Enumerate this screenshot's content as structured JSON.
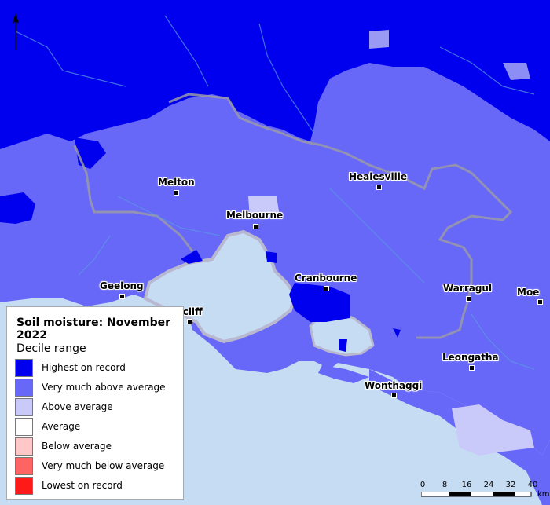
{
  "map": {
    "legend": {
      "title": "Soil moisture: November 2022",
      "subtitle": "Decile range",
      "items": [
        {
          "label": "Highest on record",
          "color": "#0000ee"
        },
        {
          "label": "Very much above average",
          "color": "#6767f8"
        },
        {
          "label": "Above average",
          "color": "#c9c9fa"
        },
        {
          "label": "Average",
          "color": "#ffffff"
        },
        {
          "label": "Below average",
          "color": "#ffc8c8"
        },
        {
          "label": "Very much below average",
          "color": "#ff6464"
        },
        {
          "label": "Lowest on record",
          "color": "#ff1a1a"
        }
      ]
    },
    "towns": {
      "melton": "Melton",
      "healesville": "Healesville",
      "melbourne": "Melbourne",
      "geelong": "Geelong",
      "cranbourne": "Cranbourne",
      "warragul": "Warragul",
      "moe": "Moe",
      "queenscliff": "Queenscliff",
      "leongatha": "Leongatha",
      "wonthaggi": "Wonthaggi"
    },
    "scale_bar": {
      "ticks": [
        "0",
        "8",
        "16",
        "24",
        "32",
        "40"
      ],
      "unit": "km"
    },
    "colors": {
      "water": "#c6dcf3",
      "highest": "#0000ee",
      "very_much_above": "#6767f8",
      "above": "#c9c9fa"
    }
  }
}
